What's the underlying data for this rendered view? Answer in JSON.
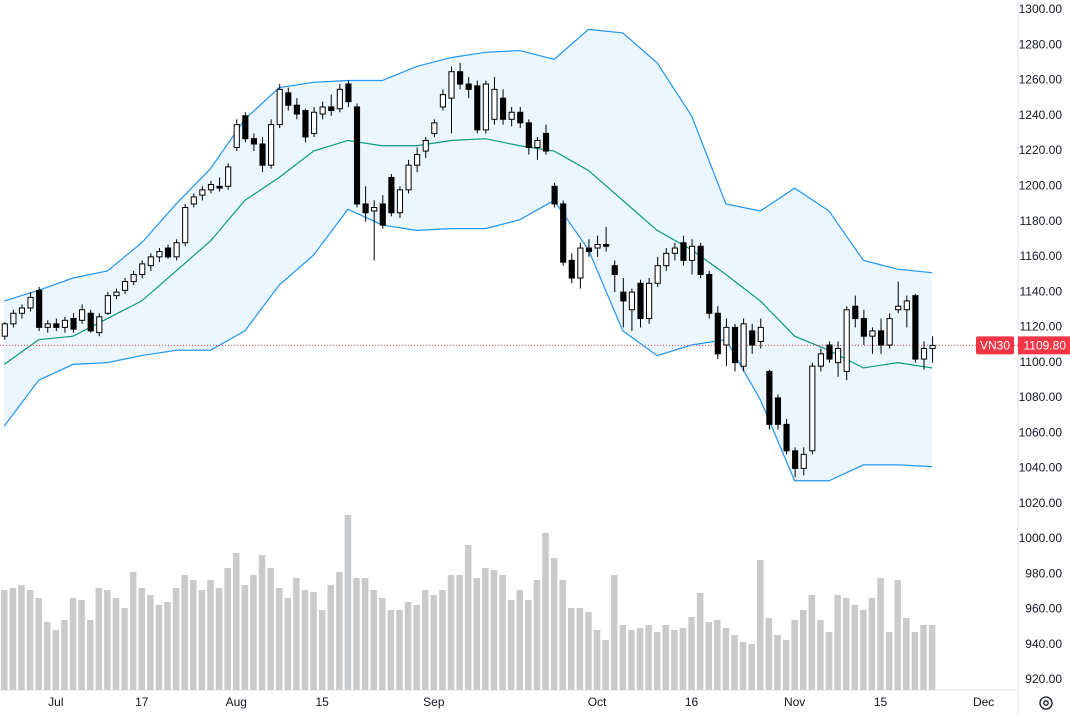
{
  "chart_data": {
    "type": "candlestick",
    "symbol": "VN30",
    "last_price": {
      "value": 1109.8,
      "label": "1109.80"
    },
    "up_color": "#ffffff",
    "down_color": "#000000",
    "volume_color": "#c9cacc",
    "grid": false,
    "xlim": [
      -0.5,
      118
    ],
    "xticks": [
      {
        "value": 6,
        "label": "Jul"
      },
      {
        "value": 16,
        "label": "17"
      },
      {
        "value": 27,
        "label": "Aug"
      },
      {
        "value": 37,
        "label": "15"
      },
      {
        "value": 50,
        "label": "Sep"
      },
      {
        "value": 69,
        "label": "Oct"
      },
      {
        "value": 80,
        "label": "16"
      },
      {
        "value": 92,
        "label": "Nov"
      },
      {
        "value": 102,
        "label": "15"
      },
      {
        "value": 114,
        "label": "Dec"
      }
    ],
    "ylim": [
      920,
      1300
    ],
    "yticks": [
      {
        "value": 1300,
        "label": "1300.00"
      },
      {
        "value": 1280,
        "label": "1280.00"
      },
      {
        "value": 1260,
        "label": "1260.00"
      },
      {
        "value": 1240,
        "label": "1240.00"
      },
      {
        "value": 1220,
        "label": "1220.00"
      },
      {
        "value": 1200,
        "label": "1200.00"
      },
      {
        "value": 1180,
        "label": "1180.00"
      },
      {
        "value": 1160,
        "label": "1160.00"
      },
      {
        "value": 1140,
        "label": "1140.00"
      },
      {
        "value": 1120,
        "label": "1120.00"
      },
      {
        "value": 1100,
        "label": "1100.00"
      },
      {
        "value": 1080,
        "label": "1080.00"
      },
      {
        "value": 1060,
        "label": "1060.00"
      },
      {
        "value": 1040,
        "label": "1040.00"
      },
      {
        "value": 1020,
        "label": "1020.00"
      },
      {
        "value": 1000,
        "label": "1000.00"
      },
      {
        "value": 980,
        "label": "980.00"
      },
      {
        "value": 960,
        "label": "960.00"
      },
      {
        "value": 940,
        "label": "940.00"
      },
      {
        "value": 920,
        "label": "920.00"
      }
    ],
    "open": [
      1115,
      1122,
      1128,
      1131,
      1141,
      1120,
      1122,
      1120,
      1125,
      1124,
      1128,
      1117,
      1128,
      1138,
      1141,
      1146,
      1150,
      1155,
      1160,
      1165,
      1160,
      1168,
      1190,
      1195,
      1198,
      1200,
      1200,
      1222,
      1240,
      1227,
      1224,
      1212,
      1235,
      1253,
      1246,
      1243,
      1230,
      1241,
      1245,
      1244,
      1258,
      1245,
      1190,
      1186,
      1190,
      1205,
      1185,
      1198,
      1212,
      1220,
      1230,
      1245,
      1250,
      1265,
      1258,
      1257,
      1232,
      1238,
      1250,
      1238,
      1242,
      1236,
      1222,
      1230,
      1200,
      1190,
      1158,
      1148,
      1165,
      1165,
      1167,
      1155,
      1140,
      1130,
      1145,
      1125,
      1145,
      1155,
      1162,
      1168,
      1158,
      1166,
      1150,
      1128,
      1110,
      1120,
      1098,
      1118,
      1112,
      1095,
      1080,
      1065,
      1050,
      1040,
      1050,
      1098,
      1110,
      1100,
      1095,
      1132,
      1125,
      1115,
      1118,
      1110,
      1130,
      1130,
      1138,
      1102,
      1108
    ],
    "high": [
      1123,
      1130,
      1133,
      1140,
      1143,
      1124,
      1125,
      1126,
      1128,
      1133,
      1130,
      1128,
      1140,
      1142,
      1148,
      1152,
      1158,
      1162,
      1165,
      1167,
      1170,
      1190,
      1196,
      1200,
      1203,
      1205,
      1213,
      1238,
      1242,
      1230,
      1228,
      1238,
      1258,
      1256,
      1250,
      1244,
      1245,
      1248,
      1252,
      1258,
      1260,
      1247,
      1200,
      1192,
      1195,
      1207,
      1200,
      1215,
      1222,
      1228,
      1238,
      1255,
      1268,
      1270,
      1262,
      1260,
      1260,
      1262,
      1255,
      1245,
      1245,
      1238,
      1228,
      1235,
      1202,
      1192,
      1162,
      1168,
      1170,
      1172,
      1177,
      1158,
      1148,
      1142,
      1147,
      1148,
      1160,
      1165,
      1168,
      1172,
      1170,
      1168,
      1152,
      1132,
      1125,
      1122,
      1125,
      1122,
      1125,
      1096,
      1082,
      1068,
      1052,
      1052,
      1100,
      1108,
      1112,
      1112,
      1132,
      1138,
      1130,
      1120,
      1125,
      1128,
      1146,
      1138,
      1139,
      1112,
      1115
    ],
    "low": [
      1113,
      1120,
      1125,
      1129,
      1118,
      1117,
      1118,
      1117,
      1117,
      1122,
      1117,
      1115,
      1127,
      1136,
      1139,
      1144,
      1148,
      1152,
      1157,
      1159,
      1158,
      1166,
      1188,
      1192,
      1196,
      1197,
      1198,
      1220,
      1225,
      1220,
      1208,
      1210,
      1233,
      1243,
      1238,
      1225,
      1228,
      1238,
      1240,
      1242,
      1245,
      1188,
      1180,
      1158,
      1176,
      1183,
      1182,
      1196,
      1208,
      1216,
      1228,
      1243,
      1230,
      1255,
      1250,
      1230,
      1230,
      1235,
      1235,
      1234,
      1233,
      1218,
      1215,
      1218,
      1188,
      1155,
      1145,
      1142,
      1160,
      1160,
      1163,
      1140,
      1120,
      1118,
      1120,
      1122,
      1143,
      1152,
      1158,
      1155,
      1150,
      1148,
      1125,
      1102,
      1098,
      1095,
      1095,
      1105,
      1108,
      1062,
      1062,
      1048,
      1035,
      1036,
      1048,
      1095,
      1100,
      1092,
      1090,
      1120,
      1110,
      1105,
      1105,
      1108,
      1128,
      1120,
      1100,
      1096,
      1100
    ],
    "close": [
      1122,
      1128,
      1131,
      1137,
      1120,
      1122,
      1120,
      1124,
      1119,
      1130,
      1118,
      1126,
      1138,
      1140,
      1146,
      1150,
      1156,
      1160,
      1163,
      1160,
      1168,
      1188,
      1194,
      1198,
      1201,
      1199,
      1211,
      1235,
      1227,
      1224,
      1212,
      1235,
      1255,
      1246,
      1241,
      1228,
      1242,
      1245,
      1243,
      1255,
      1248,
      1190,
      1185,
      1188,
      1178,
      1185,
      1198,
      1212,
      1218,
      1226,
      1236,
      1252,
      1265,
      1258,
      1255,
      1232,
      1258,
      1255,
      1238,
      1242,
      1236,
      1222,
      1226,
      1220,
      1190,
      1157,
      1148,
      1165,
      1163,
      1167,
      1166,
      1150,
      1135,
      1140,
      1125,
      1145,
      1155,
      1162,
      1165,
      1158,
      1166,
      1150,
      1128,
      1105,
      1120,
      1100,
      1122,
      1110,
      1120,
      1065,
      1065,
      1050,
      1040,
      1048,
      1098,
      1105,
      1102,
      1108,
      1130,
      1125,
      1115,
      1118,
      1110,
      1125,
      1132,
      1135,
      1102,
      1108,
      1109.8
    ],
    "volume": [
      100,
      102,
      105,
      100,
      92,
      68,
      60,
      70,
      92,
      90,
      70,
      102,
      100,
      92,
      82,
      118,
      102,
      95,
      85,
      88,
      102,
      115,
      110,
      100,
      110,
      102,
      122,
      137,
      105,
      115,
      135,
      122,
      102,
      92,
      112,
      100,
      98,
      80,
      105,
      118,
      175,
      112,
      112,
      100,
      92,
      80,
      80,
      88,
      85,
      100,
      95,
      100,
      115,
      115,
      145,
      112,
      122,
      120,
      115,
      90,
      100,
      90,
      110,
      157,
      132,
      110,
      82,
      82,
      78,
      60,
      50,
      115,
      65,
      60,
      62,
      65,
      58,
      65,
      60,
      62,
      73,
      97,
      68,
      70,
      62,
      55,
      48,
      46,
      130,
      72,
      55,
      50,
      70,
      80,
      95,
      70,
      58,
      95,
      92,
      85,
      80,
      92,
      112,
      58,
      110,
      72,
      58,
      65,
      65
    ],
    "bands": {
      "color": "#2196f3",
      "middle_color": "#089981",
      "fill": "#e3f2fd",
      "x": [
        0,
        4,
        8,
        12,
        16,
        20,
        24,
        28,
        32,
        36,
        40,
        44,
        48,
        52,
        56,
        60,
        64,
        68,
        72,
        76,
        80,
        84,
        88,
        92,
        96,
        100,
        104,
        108
      ],
      "upper": [
        1135,
        1141,
        1148,
        1152,
        1168,
        1190,
        1210,
        1238,
        1256,
        1259,
        1260,
        1260,
        1268,
        1273,
        1276,
        1277,
        1272,
        1289,
        1287,
        1270,
        1240,
        1190,
        1186,
        1199,
        1186,
        1158,
        1153,
        1151
      ],
      "middle": [
        1099,
        1113,
        1115,
        1125,
        1135,
        1152,
        1169,
        1192,
        1205,
        1220,
        1226,
        1223,
        1223,
        1226,
        1227,
        1223,
        1220,
        1209,
        1192,
        1175,
        1164,
        1150,
        1135,
        1115,
        1107,
        1097,
        1100,
        1097
      ],
      "lower": [
        1064,
        1090,
        1099,
        1100,
        1104,
        1107,
        1107,
        1118,
        1144,
        1161,
        1187,
        1178,
        1175,
        1176,
        1176,
        1181,
        1192,
        1164,
        1118,
        1104,
        1110,
        1113,
        1079,
        1033,
        1033,
        1042,
        1042,
        1041
      ]
    }
  }
}
